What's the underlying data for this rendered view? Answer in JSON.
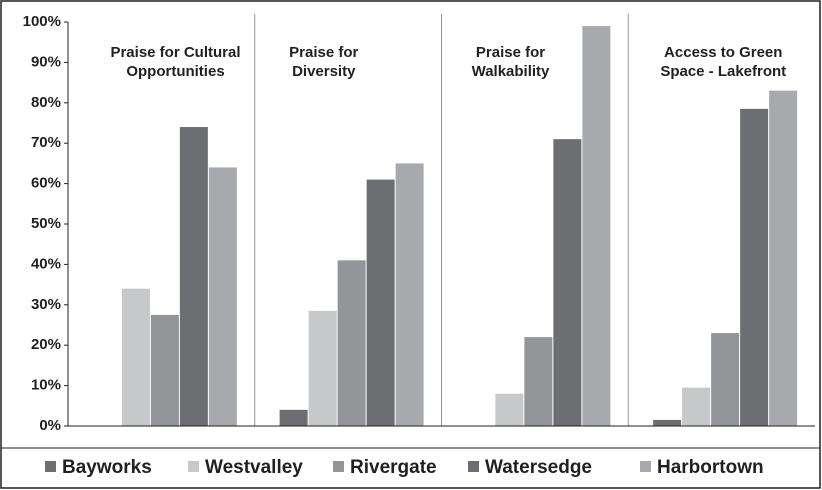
{
  "chart_data": {
    "type": "bar",
    "categories": [
      "Praise for Cultural Opportunities",
      "Praise for Diversity",
      "Praise for Walkability",
      "Access to Green Space - Lakefront"
    ],
    "series": [
      {
        "name": "Bayworks",
        "color": "#6d6e71",
        "values": [
          0,
          4,
          0,
          1.5
        ]
      },
      {
        "name": "Westvalley",
        "color": "#c7c8ca",
        "values": [
          34,
          28.5,
          8,
          9.5
        ]
      },
      {
        "name": "Rivergate",
        "color": "#939598",
        "values": [
          27.5,
          41,
          22,
          23
        ]
      },
      {
        "name": "Watersedge",
        "color": "#6d6e71",
        "values": [
          74,
          61,
          71,
          78.5
        ]
      },
      {
        "name": "Harbortown",
        "color": "#a7a9ac",
        "values": [
          64,
          65,
          99,
          83
        ]
      }
    ],
    "ylim": [
      0,
      100
    ],
    "yticks": [
      {
        "value": 0,
        "label": "0%"
      },
      {
        "value": 10,
        "label": "10%"
      },
      {
        "value": 20,
        "label": "20%"
      },
      {
        "value": 30,
        "label": "30%"
      },
      {
        "value": 40,
        "label": "40%"
      },
      {
        "value": 50,
        "label": "50%"
      },
      {
        "value": 60,
        "label": "60%"
      },
      {
        "value": 70,
        "label": "70%"
      },
      {
        "value": 80,
        "label": "80%"
      },
      {
        "value": 90,
        "label": "90%"
      },
      {
        "value": 100,
        "label": "100%"
      }
    ],
    "grid": false,
    "legend": "bottom"
  }
}
